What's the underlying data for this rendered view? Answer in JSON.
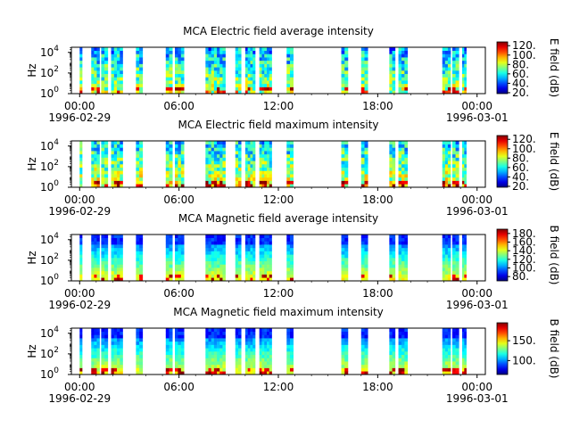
{
  "chart_data": [
    {
      "type": "heatmap",
      "title": "MCA  Electric field average intensity",
      "ylabel": "Hz",
      "y_scale": "log",
      "ylim": [
        1,
        31623
      ],
      "y_ticks": [
        1,
        100,
        10000
      ],
      "y_tick_labels": [
        "10^0",
        "10^2",
        "10^4"
      ],
      "x_ticks": [
        "00:00\n1996-02-29",
        "06:00",
        "12:00",
        "18:00",
        "00:00\n1996-03-01"
      ],
      "colorbar_label": "E field (dB)",
      "colorbar_range": [
        18,
        128
      ],
      "colorbar_ticks": [
        20,
        40,
        60,
        80,
        100,
        120
      ],
      "colormap": "jet",
      "data_intervals_hours": [
        [
          0.0,
          0.15
        ],
        [
          0.7,
          1.2
        ],
        [
          1.3,
          1.7
        ],
        [
          1.9,
          2.6
        ],
        [
          3.4,
          3.8
        ],
        [
          5.2,
          5.6
        ],
        [
          5.75,
          6.3
        ],
        [
          7.6,
          8.8
        ],
        [
          9.4,
          9.75
        ],
        [
          10.0,
          10.6
        ],
        [
          10.85,
          11.6
        ],
        [
          12.5,
          12.9
        ],
        [
          15.8,
          16.2
        ],
        [
          17.0,
          17.4
        ],
        [
          18.7,
          19.05
        ],
        [
          19.25,
          19.8
        ],
        [
          21.9,
          22.4
        ],
        [
          22.5,
          22.9
        ],
        [
          23.1,
          23.35
        ]
      ]
    },
    {
      "type": "heatmap",
      "title": "MCA  Electric field maximum intensity",
      "ylabel": "Hz",
      "y_scale": "log",
      "ylim": [
        1,
        31623
      ],
      "y_ticks": [
        1,
        100,
        10000
      ],
      "y_tick_labels": [
        "10^0",
        "10^2",
        "10^4"
      ],
      "x_ticks": [
        "00:00\n1996-02-29",
        "06:00",
        "12:00",
        "18:00",
        "00:00\n1996-03-01"
      ],
      "colorbar_label": "E field (dB)",
      "colorbar_range": [
        18,
        128
      ],
      "colorbar_ticks": [
        20,
        40,
        60,
        80,
        100,
        120
      ],
      "colormap": "jet",
      "data_intervals_hours": [
        [
          0.0,
          0.15
        ],
        [
          0.7,
          1.2
        ],
        [
          1.3,
          1.7
        ],
        [
          1.9,
          2.6
        ],
        [
          3.4,
          3.8
        ],
        [
          5.2,
          5.6
        ],
        [
          5.75,
          6.3
        ],
        [
          7.6,
          8.8
        ],
        [
          9.4,
          9.75
        ],
        [
          10.0,
          10.6
        ],
        [
          10.85,
          11.6
        ],
        [
          12.5,
          12.9
        ],
        [
          15.8,
          16.2
        ],
        [
          17.0,
          17.4
        ],
        [
          18.7,
          19.05
        ],
        [
          19.25,
          19.8
        ],
        [
          21.9,
          22.4
        ],
        [
          22.5,
          22.9
        ],
        [
          23.1,
          23.35
        ]
      ]
    },
    {
      "type": "heatmap",
      "title": "MCA  Magnetic field average intensity",
      "ylabel": "Hz",
      "y_scale": "log",
      "ylim": [
        1,
        31623
      ],
      "y_ticks": [
        1,
        100,
        10000
      ],
      "y_tick_labels": [
        "10^0",
        "10^2",
        "10^4"
      ],
      "x_ticks": [
        "00:00\n1996-02-29",
        "06:00",
        "12:00",
        "18:00",
        "00:00\n1996-03-01"
      ],
      "colorbar_label": "B field (dB)",
      "colorbar_range": [
        70,
        190
      ],
      "colorbar_ticks": [
        80,
        100,
        120,
        140,
        160,
        180
      ],
      "colormap": "jet",
      "data_intervals_hours": [
        [
          0.0,
          0.15
        ],
        [
          0.7,
          1.2
        ],
        [
          1.3,
          1.7
        ],
        [
          1.9,
          2.6
        ],
        [
          3.4,
          3.8
        ],
        [
          5.2,
          5.6
        ],
        [
          5.75,
          6.3
        ],
        [
          7.6,
          8.8
        ],
        [
          9.4,
          9.75
        ],
        [
          10.0,
          10.6
        ],
        [
          10.85,
          11.6
        ],
        [
          12.5,
          12.9
        ],
        [
          15.8,
          16.2
        ],
        [
          17.0,
          17.4
        ],
        [
          18.7,
          19.05
        ],
        [
          19.25,
          19.8
        ],
        [
          21.9,
          22.4
        ],
        [
          22.5,
          22.9
        ],
        [
          23.1,
          23.35
        ]
      ]
    },
    {
      "type": "heatmap",
      "title": "MCA  Magnetic field maximum intensity",
      "ylabel": "Hz",
      "y_scale": "log",
      "ylim": [
        1,
        31623
      ],
      "y_ticks": [
        1,
        100,
        10000
      ],
      "y_tick_labels": [
        "10^0",
        "10^2",
        "10^4"
      ],
      "x_ticks": [
        "00:00\n1996-02-29",
        "06:00",
        "12:00",
        "18:00",
        "00:00\n1996-03-01"
      ],
      "colorbar_label": "B field (dB)",
      "colorbar_range": [
        65,
        195
      ],
      "colorbar_ticks": [
        100,
        150
      ],
      "colormap": "jet",
      "data_intervals_hours": [
        [
          0.0,
          0.15
        ],
        [
          0.7,
          1.2
        ],
        [
          1.3,
          1.7
        ],
        [
          1.9,
          2.6
        ],
        [
          3.4,
          3.8
        ],
        [
          5.2,
          5.6
        ],
        [
          5.75,
          6.3
        ],
        [
          7.6,
          8.8
        ],
        [
          9.4,
          9.75
        ],
        [
          10.0,
          10.6
        ],
        [
          10.85,
          11.6
        ],
        [
          12.5,
          12.9
        ],
        [
          15.8,
          16.2
        ],
        [
          17.0,
          17.4
        ],
        [
          18.7,
          19.05
        ],
        [
          19.25,
          19.8
        ],
        [
          21.9,
          22.4
        ],
        [
          22.5,
          22.9
        ],
        [
          23.1,
          23.35
        ]
      ]
    }
  ],
  "x_axis_range_hours": [
    -0.5,
    24.5
  ]
}
